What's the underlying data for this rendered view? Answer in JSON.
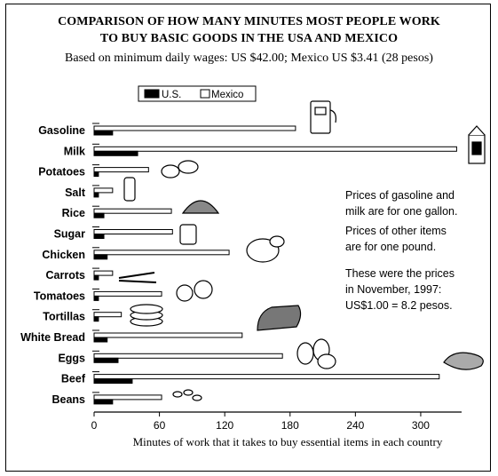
{
  "chart_data": {
    "type": "bar",
    "title": "COMPARISON OF HOW MANY MINUTES MOST PEOPLE WORK\nTO BUY BASIC GOODS IN THE USA AND MEXICO",
    "subtitle": "Based on minimum daily wages: US $42.00;  Mexico US $3.41 (28 pesos)",
    "orientation": "horizontal",
    "categories": [
      "Gasoline",
      "Milk",
      "Potatoes",
      "Salt",
      "Rice",
      "Sugar",
      "Chicken",
      "Carrots",
      "Tomatoes",
      "Tortillas",
      "White Bread",
      "Eggs",
      "Beef",
      "Beans"
    ],
    "series": [
      {
        "name": "U.S.",
        "color": "#000000",
        "values": [
          17,
          40,
          4,
          4,
          9,
          9,
          12,
          4,
          4,
          4,
          12,
          22,
          35,
          17
        ]
      },
      {
        "name": "Mexico",
        "color": "#ffffff",
        "values": [
          185,
          333,
          50,
          17,
          71,
          72,
          124,
          17,
          62,
          25,
          136,
          173,
          317,
          62
        ]
      }
    ],
    "xlabel": "Minutes of work that it takes to buy essential items in each country",
    "xticks": [
      "0",
      "60",
      "120",
      "180",
      "240",
      "300"
    ],
    "xlim": [
      0,
      340
    ],
    "legend_position": "top-left",
    "annotations": [
      "Prices of gasoline and\nmilk are for one gallon.",
      "Prices of other items\nare for one pound.",
      "These were the prices\nin November, 1997:\nUS$1.00 = 8.2 pesos."
    ]
  }
}
